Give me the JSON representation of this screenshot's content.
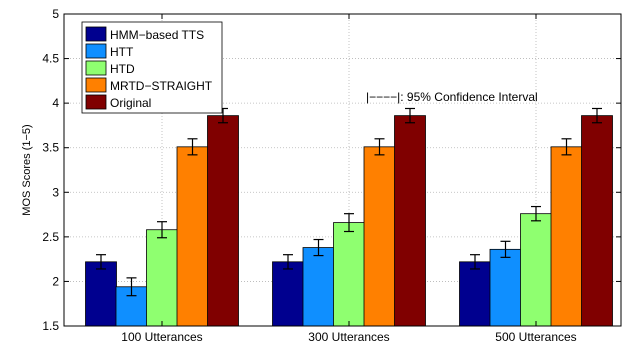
{
  "chart_data": {
    "type": "bar",
    "categories": [
      "100 Utterances",
      "300 Utterances",
      "500 Utterances"
    ],
    "series": [
      {
        "name": "HMM−based TTS",
        "color": "#00008F",
        "values": [
          2.22,
          2.22,
          2.22
        ],
        "ci": [
          0.08,
          0.08,
          0.08
        ]
      },
      {
        "name": "HTT",
        "color": "#0F8FFF",
        "values": [
          1.94,
          2.38,
          2.36
        ],
        "ci": [
          0.1,
          0.09,
          0.09
        ]
      },
      {
        "name": "HTD",
        "color": "#8FFF70",
        "values": [
          2.58,
          2.66,
          2.76
        ],
        "ci": [
          0.09,
          0.1,
          0.08
        ]
      },
      {
        "name": "MRTD−STRAIGHT",
        "color": "#FF8000",
        "values": [
          3.51,
          3.51,
          3.51
        ],
        "ci": [
          0.09,
          0.09,
          0.09
        ]
      },
      {
        "name": "Original",
        "color": "#800000",
        "values": [
          3.86,
          3.86,
          3.86
        ],
        "ci": [
          0.08,
          0.08,
          0.08
        ]
      }
    ],
    "title": "",
    "xlabel": "",
    "ylabel": "MOS Scores (1−5)",
    "ylim": [
      1.5,
      5
    ],
    "yticks": [
      "1.5",
      "2",
      "2.5",
      "3",
      "3.5",
      "4",
      "4.5",
      "5"
    ],
    "grid": true,
    "legend_position": "top-left",
    "annotation": "|−−−−|: 95% Confidence Interval"
  }
}
